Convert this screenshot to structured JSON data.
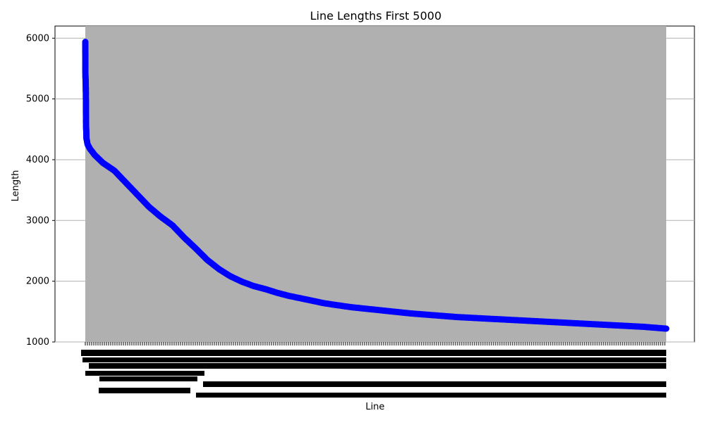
{
  "chart_data": {
    "type": "line",
    "title": "Line Lengths First 5000",
    "xlabel": "Line",
    "ylabel": "Length",
    "ylim": [
      1000,
      6200
    ],
    "y_ticks": [
      1000,
      2000,
      3000,
      4000,
      5000,
      6000
    ],
    "x_tick_labels_note": "One tick per line; labels are densely overlapping and illegible.",
    "grid": "horizontal",
    "series": [
      {
        "color": "#0000ff",
        "marker": "circle",
        "x": [
          0,
          1,
          2,
          3,
          4,
          5,
          6,
          7,
          8,
          9,
          10,
          20,
          40,
          80,
          150,
          250,
          350,
          450,
          550,
          650,
          750,
          850,
          950,
          1050,
          1150,
          1250,
          1350,
          1450,
          1550,
          1650,
          1750,
          1850,
          1950,
          2050,
          2150,
          2300,
          2450,
          2600,
          2800,
          3000,
          3200,
          3400,
          3600,
          3800,
          4000,
          4200,
          4400,
          4600,
          4800,
          4999
        ],
        "y": [
          5940,
          5380,
          5340,
          5300,
          5190,
          5060,
          4650,
          4520,
          4480,
          4430,
          4350,
          4250,
          4180,
          4080,
          3950,
          3820,
          3620,
          3420,
          3220,
          3060,
          2920,
          2720,
          2540,
          2350,
          2200,
          2080,
          1990,
          1920,
          1870,
          1810,
          1760,
          1720,
          1680,
          1640,
          1610,
          1570,
          1540,
          1510,
          1470,
          1440,
          1410,
          1390,
          1370,
          1350,
          1330,
          1310,
          1290,
          1270,
          1250,
          1220
        ]
      }
    ],
    "x_count": 5000,
    "plot_background": "#b0b0b0",
    "grid_color": "#b0b0b0"
  }
}
